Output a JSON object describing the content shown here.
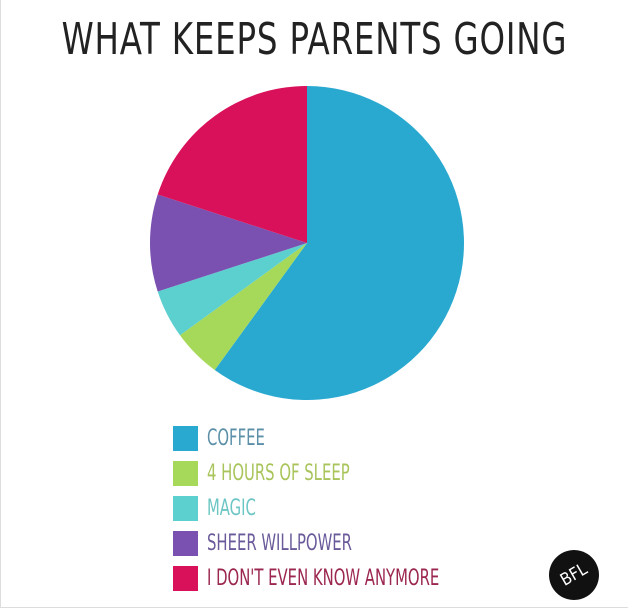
{
  "chart_data": {
    "type": "pie",
    "title": "WHAT KEEPS PARENTS GOING",
    "start": "top",
    "direction": "clockwise",
    "legend_placement": "bottom",
    "slices": [
      {
        "label": "COFFEE",
        "value": 60,
        "color": "#29a9d0",
        "text_color": "#5b8fa8"
      },
      {
        "label": "4 HOURS OF SLEEP",
        "value": 5,
        "color": "#a6d95a",
        "text_color": "#a8c45a"
      },
      {
        "label": "MAGIC",
        "value": 5,
        "color": "#5ccfcf",
        "text_color": "#6cc6c4"
      },
      {
        "label": "SHEER WILLPOWER",
        "value": 10,
        "color": "#7a50b0",
        "text_color": "#6a5a9a"
      },
      {
        "label": "I DON'T EVEN KNOW ANYMORE",
        "value": 20,
        "color": "#d8115a",
        "text_color": "#9b2650"
      }
    ]
  },
  "logo": {
    "text": "BFL"
  }
}
